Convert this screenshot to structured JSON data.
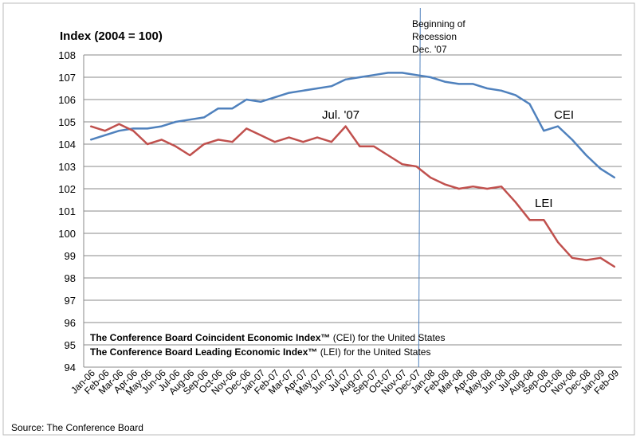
{
  "chart_data": {
    "type": "line",
    "title": "Index (2004 = 100)",
    "ylabel": "Index (2004 = 100)",
    "xlabel": "",
    "ylim": [
      94,
      108
    ],
    "yticks": [
      94,
      95,
      96,
      97,
      98,
      99,
      100,
      101,
      102,
      103,
      104,
      105,
      106,
      107,
      108
    ],
    "grid": true,
    "categories": [
      "Jan-06",
      "Feb-06",
      "Mar-06",
      "Apr-06",
      "May-06",
      "Jun-06",
      "Jul-06",
      "Aug-06",
      "Sep-06",
      "Oct-06",
      "Nov-06",
      "Dec-06",
      "Jan-07",
      "Feb-07",
      "Mar-07",
      "Apr-07",
      "May-07",
      "Jun-07",
      "Jul-07",
      "Aug-07",
      "Sep-07",
      "Oct-07",
      "Nov-07",
      "Dec-07",
      "Jan-08",
      "Feb-08",
      "Mar-08",
      "Apr-08",
      "May-08",
      "Jun-08",
      "Jul-08",
      "Aug-08",
      "Sep-08",
      "Oct-08",
      "Nov-08",
      "Dec-08",
      "Jan-09",
      "Feb-09"
    ],
    "series": [
      {
        "name": "CEI",
        "color": "#4f81bd",
        "values": [
          104.2,
          104.4,
          104.6,
          104.7,
          104.7,
          104.8,
          105.0,
          105.1,
          105.2,
          105.6,
          105.6,
          106.0,
          105.9,
          106.1,
          106.3,
          106.4,
          106.5,
          106.6,
          106.9,
          107.0,
          107.1,
          107.2,
          107.2,
          107.1,
          107.0,
          106.8,
          106.7,
          106.7,
          106.5,
          106.4,
          106.2,
          105.8,
          104.6,
          104.8,
          104.2,
          103.5,
          102.9,
          102.5
        ]
      },
      {
        "name": "LEI",
        "color": "#c0504d",
        "values": [
          104.8,
          104.6,
          104.9,
          104.6,
          104.0,
          104.2,
          103.9,
          103.5,
          104.0,
          104.2,
          104.1,
          104.7,
          104.4,
          104.1,
          104.3,
          104.1,
          104.3,
          104.1,
          104.8,
          103.9,
          103.9,
          103.5,
          103.1,
          103.0,
          102.5,
          102.2,
          102.0,
          102.1,
          102.0,
          102.1,
          101.4,
          100.6,
          100.6,
          99.6,
          98.9,
          98.8,
          98.9,
          98.5
        ]
      }
    ],
    "annotations": {
      "recession": [
        "Beginning of",
        "Recession",
        "Dec. '07"
      ],
      "peak": "Jul. '07",
      "cei_label": "CEI",
      "lei_label": "LEI"
    },
    "legend": {
      "line1_bold": "The Conference Board Coincident Economic Index™",
      "line1_rest": " (CEI) for the United States",
      "line2_bold": "The Conference Board Leading Economic Index™",
      "line2_rest": " (LEI) for the United States"
    },
    "source": "Source: The Conference Board"
  }
}
